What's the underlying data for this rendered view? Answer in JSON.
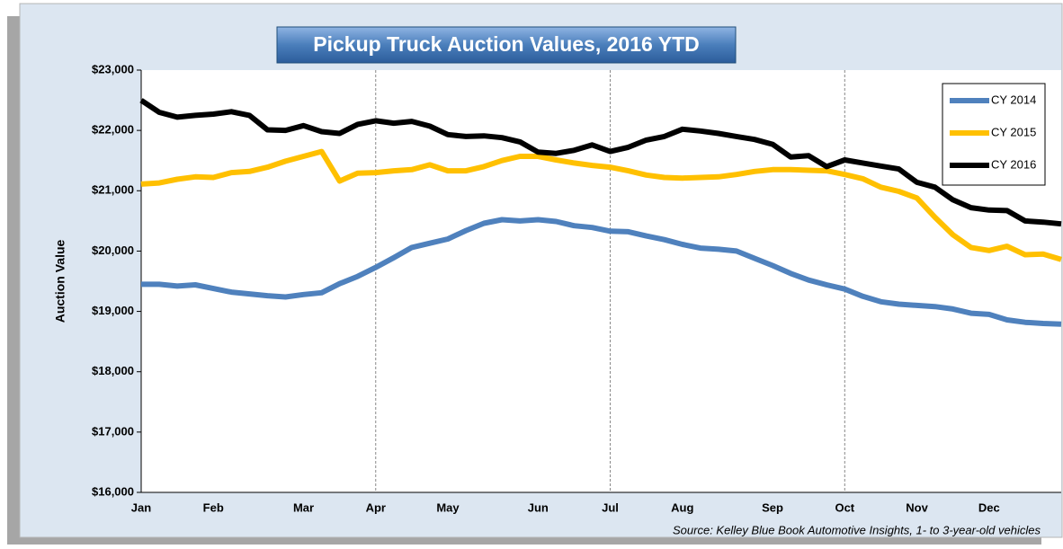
{
  "chart_data": {
    "type": "line",
    "title": "Pickup Truck Auction Values, 2016 YTD",
    "ylabel": "Auction Value",
    "source": "Source: Kelley Blue Book Automotive Insights, 1- to 3-year-old vehicles",
    "categories": [
      "Jan",
      null,
      null,
      null,
      "Feb",
      null,
      null,
      null,
      null,
      "Mar",
      null,
      null,
      null,
      "Apr",
      null,
      null,
      null,
      "May",
      null,
      null,
      null,
      null,
      "Jun",
      null,
      null,
      null,
      "Jul",
      null,
      null,
      null,
      "Aug",
      null,
      null,
      null,
      null,
      "Sep",
      null,
      null,
      null,
      "Oct",
      null,
      null,
      null,
      "Nov",
      null,
      null,
      null,
      "Dec",
      null,
      null,
      null,
      null
    ],
    "series": [
      {
        "name": "CY 2014",
        "color": "#4f81bd",
        "values": [
          19450,
          19450,
          19420,
          19440,
          19380,
          19320,
          19290,
          19260,
          19240,
          19280,
          19310,
          19460,
          19580,
          19730,
          19890,
          20060,
          20130,
          20200,
          20340,
          20460,
          20520,
          20500,
          20520,
          20490,
          20420,
          20390,
          20330,
          20320,
          20250,
          20190,
          20110,
          20050,
          20030,
          20000,
          19880,
          19760,
          19630,
          19520,
          19440,
          19370,
          19250,
          19160,
          19120,
          19100,
          19080,
          19040,
          18970,
          18950,
          18860,
          18820,
          18800,
          18790
        ]
      },
      {
        "name": "CY 2015",
        "color": "#ffc000",
        "values": [
          21110,
          21130,
          21190,
          21230,
          21220,
          21300,
          21320,
          21390,
          21490,
          21570,
          21650,
          21160,
          21290,
          21300,
          21330,
          21350,
          21430,
          21330,
          21330,
          21400,
          21500,
          21570,
          21570,
          21510,
          21460,
          21420,
          21390,
          21330,
          21260,
          21220,
          21210,
          21220,
          21230,
          21270,
          21320,
          21350,
          21350,
          21340,
          21330,
          21270,
          21200,
          21060,
          20990,
          20880,
          20560,
          20270,
          20060,
          20010,
          20080,
          19940,
          19950,
          19860
        ]
      },
      {
        "name": "CY 2016",
        "color": "#000000",
        "values": [
          22500,
          22300,
          22220,
          22250,
          22270,
          22310,
          22250,
          22010,
          22000,
          22080,
          21980,
          21950,
          22100,
          22160,
          22120,
          22150,
          22070,
          21930,
          21900,
          21910,
          21880,
          21810,
          21640,
          21620,
          21670,
          21760,
          21650,
          21720,
          21840,
          21900,
          22020,
          21990,
          21950,
          21900,
          21850,
          21770,
          21560,
          21580,
          21400,
          21510,
          21460,
          21410,
          21360,
          21140,
          21060,
          20850,
          20720,
          20680,
          20670,
          20500,
          20480,
          20450
        ]
      }
    ],
    "ylim": [
      16000,
      23000
    ],
    "yticks": [
      {
        "value": 16000,
        "label": "$16,000"
      },
      {
        "value": 17000,
        "label": "$17,000"
      },
      {
        "value": 18000,
        "label": "$18,000"
      },
      {
        "value": 19000,
        "label": "$19,000"
      },
      {
        "value": 20000,
        "label": "$20,000"
      },
      {
        "value": 21000,
        "label": "$21,000"
      },
      {
        "value": 22000,
        "label": "$22,000"
      },
      {
        "value": 23000,
        "label": "$23,000"
      }
    ],
    "legend": "upper right"
  }
}
